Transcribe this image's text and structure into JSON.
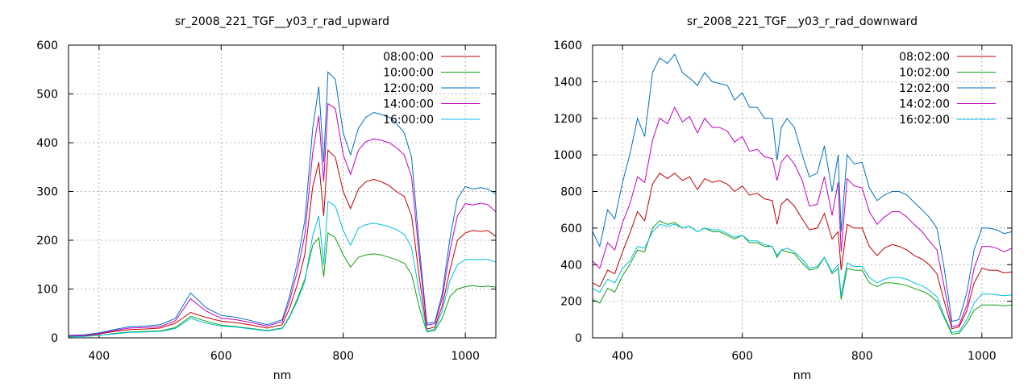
{
  "chart_data": [
    {
      "type": "line",
      "title": "sr_2008_221_TGF__y03_r_rad_upward",
      "xlabel": "nm",
      "ylabel": "",
      "xlim": [
        350,
        1050
      ],
      "ylim": [
        0,
        600
      ],
      "xticks": [
        400,
        600,
        800,
        1000
      ],
      "yticks": [
        0,
        100,
        200,
        300,
        400,
        500,
        600
      ],
      "grid": true,
      "legend_position": "top-right",
      "x": [
        350,
        375,
        400,
        425,
        450,
        475,
        500,
        525,
        550,
        575,
        600,
        625,
        650,
        675,
        700,
        712,
        725,
        737,
        750,
        760,
        768,
        775,
        787,
        800,
        812,
        825,
        837,
        850,
        862,
        875,
        887,
        900,
        912,
        925,
        937,
        950,
        962,
        975,
        987,
        1000,
        1012,
        1025,
        1037,
        1050
      ],
      "series": [
        {
          "name": "08:00:00",
          "color": "#c00000",
          "values": [
            3,
            4,
            8,
            13,
            17,
            18,
            20,
            30,
            52,
            42,
            34,
            31,
            26,
            20,
            27,
            60,
            110,
            170,
            310,
            360,
            250,
            385,
            370,
            300,
            265,
            305,
            320,
            325,
            320,
            312,
            300,
            290,
            250,
            120,
            18,
            22,
            65,
            140,
            200,
            215,
            220,
            218,
            220,
            208
          ]
        },
        {
          "name": "10:00:00",
          "color": "#10a010",
          "values": [
            2,
            3,
            5,
            9,
            12,
            13,
            14,
            21,
            44,
            34,
            26,
            23,
            19,
            15,
            20,
            44,
            80,
            120,
            190,
            205,
            125,
            215,
            205,
            170,
            145,
            165,
            170,
            172,
            170,
            165,
            160,
            153,
            130,
            60,
            12,
            15,
            40,
            85,
            100,
            105,
            107,
            105,
            106,
            104
          ]
        },
        {
          "name": "12:00:00",
          "color": "#0070c0",
          "values": [
            5,
            6,
            10,
            17,
            23,
            24,
            27,
            40,
            92,
            62,
            46,
            42,
            35,
            27,
            37,
            85,
            155,
            240,
            430,
            515,
            360,
            545,
            530,
            420,
            375,
            430,
            452,
            462,
            458,
            452,
            440,
            420,
            370,
            180,
            30,
            32,
            90,
            205,
            285,
            310,
            305,
            308,
            305,
            295
          ]
        },
        {
          "name": "14:00:00",
          "color": "#c000c0",
          "values": [
            4,
            5,
            9,
            15,
            20,
            21,
            23,
            35,
            80,
            55,
            40,
            37,
            31,
            24,
            33,
            75,
            137,
            210,
            380,
            455,
            320,
            480,
            470,
            375,
            335,
            385,
            402,
            408,
            405,
            400,
            390,
            375,
            330,
            160,
            26,
            29,
            80,
            180,
            250,
            275,
            272,
            276,
            273,
            258
          ]
        },
        {
          "name": "16:00:00",
          "color": "#00c0e0",
          "values": [
            2,
            3,
            5,
            8,
            11,
            12,
            13,
            19,
            40,
            30,
            24,
            22,
            18,
            14,
            19,
            42,
            76,
            115,
            210,
            250,
            150,
            280,
            270,
            220,
            190,
            225,
            232,
            235,
            232,
            228,
            222,
            212,
            185,
            90,
            14,
            18,
            55,
            118,
            150,
            160,
            161,
            160,
            161,
            155
          ]
        }
      ]
    },
    {
      "type": "line",
      "title": "sr_2008_221_TGF__y03_r_rad_downward",
      "xlabel": "nm",
      "ylabel": "",
      "xlim": [
        350,
        1050
      ],
      "ylim": [
        0,
        1600
      ],
      "xticks": [
        400,
        600,
        800,
        1000
      ],
      "yticks": [
        0,
        200,
        400,
        600,
        800,
        1000,
        1200,
        1400,
        1600
      ],
      "grid": true,
      "legend_position": "top-right",
      "x": [
        350,
        362,
        375,
        387,
        400,
        412,
        425,
        437,
        450,
        462,
        475,
        487,
        500,
        512,
        525,
        537,
        550,
        562,
        575,
        587,
        600,
        612,
        625,
        637,
        650,
        658,
        665,
        675,
        687,
        700,
        712,
        725,
        737,
        750,
        760,
        765,
        775,
        787,
        800,
        812,
        825,
        837,
        850,
        862,
        875,
        887,
        900,
        912,
        925,
        937,
        950,
        962,
        975,
        987,
        1000,
        1012,
        1025,
        1037,
        1050
      ],
      "series": [
        {
          "name": "08:02:00",
          "color": "#c00000",
          "values": [
            300,
            280,
            370,
            350,
            470,
            570,
            690,
            640,
            840,
            900,
            870,
            900,
            860,
            880,
            810,
            870,
            850,
            860,
            840,
            800,
            830,
            780,
            790,
            760,
            750,
            620,
            730,
            760,
            720,
            650,
            590,
            600,
            680,
            540,
            580,
            370,
            620,
            600,
            600,
            500,
            450,
            490,
            510,
            500,
            480,
            450,
            430,
            400,
            350,
            200,
            50,
            60,
            150,
            300,
            380,
            370,
            370,
            355,
            360
          ]
        },
        {
          "name": "10:02:00",
          "color": "#10a010",
          "values": [
            210,
            190,
            270,
            250,
            340,
            400,
            480,
            470,
            600,
            640,
            620,
            630,
            600,
            610,
            580,
            600,
            580,
            580,
            560,
            540,
            560,
            520,
            520,
            500,
            500,
            440,
            480,
            470,
            460,
            410,
            370,
            380,
            440,
            350,
            380,
            210,
            380,
            370,
            370,
            300,
            280,
            300,
            300,
            295,
            285,
            270,
            255,
            235,
            200,
            110,
            20,
            25,
            80,
            150,
            180,
            180,
            180,
            175,
            180
          ]
        },
        {
          "name": "12:02:00",
          "color": "#0070c0",
          "values": [
            580,
            500,
            700,
            650,
            850,
            1000,
            1200,
            1100,
            1450,
            1530,
            1500,
            1550,
            1450,
            1420,
            1380,
            1450,
            1400,
            1390,
            1380,
            1300,
            1340,
            1260,
            1260,
            1200,
            1200,
            970,
            1150,
            1200,
            1150,
            1000,
            880,
            900,
            1050,
            800,
            1000,
            580,
            1000,
            950,
            960,
            820,
            750,
            780,
            800,
            800,
            780,
            740,
            700,
            660,
            600,
            380,
            90,
            100,
            250,
            480,
            600,
            600,
            590,
            570,
            580
          ]
        },
        {
          "name": "14:02:00",
          "color": "#c000c0",
          "values": [
            420,
            380,
            520,
            480,
            630,
            730,
            880,
            850,
            1080,
            1200,
            1170,
            1260,
            1180,
            1210,
            1120,
            1200,
            1150,
            1150,
            1130,
            1070,
            1100,
            1020,
            1030,
            990,
            980,
            860,
            960,
            1000,
            950,
            860,
            720,
            730,
            880,
            670,
            850,
            470,
            870,
            830,
            820,
            690,
            620,
            660,
            690,
            690,
            660,
            620,
            580,
            530,
            480,
            280,
            60,
            70,
            180,
            380,
            500,
            500,
            490,
            470,
            490
          ]
        },
        {
          "name": "16:02:00",
          "color": "#00c0e0",
          "values": [
            270,
            250,
            320,
            300,
            380,
            420,
            500,
            490,
            580,
            620,
            610,
            620,
            600,
            610,
            580,
            600,
            590,
            590,
            570,
            550,
            560,
            530,
            530,
            510,
            500,
            450,
            480,
            490,
            470,
            430,
            380,
            390,
            440,
            360,
            400,
            230,
            410,
            390,
            390,
            330,
            300,
            320,
            330,
            330,
            320,
            300,
            285,
            260,
            225,
            120,
            30,
            35,
            100,
            190,
            240,
            240,
            235,
            230,
            235
          ]
        }
      ]
    }
  ]
}
